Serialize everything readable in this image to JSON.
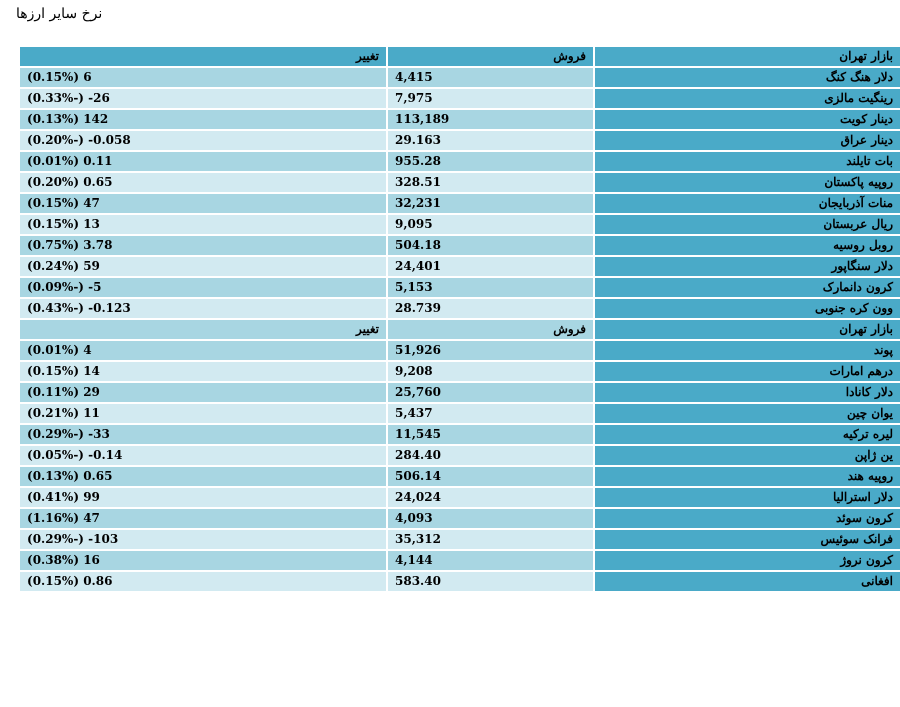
{
  "page_title": "نرخ سایر ارزها",
  "headers": {
    "market": "بازار تهران",
    "sell": "فروش",
    "change": "تغییر"
  },
  "rows": [
    {
      "name": "دلار هنگ کنگ",
      "sell": "4,415",
      "change": "6 (0.15%)"
    },
    {
      "name": "رینگیت مالزی",
      "sell": "7,975",
      "change": "26- (-0.33%)"
    },
    {
      "name": "دینار کویت",
      "sell": "113,189",
      "change": "142 (0.13%)"
    },
    {
      "name": "دینار عراق",
      "sell": "29.163",
      "change": "0.058- (-0.20%)"
    },
    {
      "name": "بات تایلند",
      "sell": "955.28",
      "change": "0.11 (0.01%)"
    },
    {
      "name": "روپیه پاکستان",
      "sell": "328.51",
      "change": "0.65 (0.20%)"
    },
    {
      "name": "منات آذربایجان",
      "sell": "32,231",
      "change": "47 (0.15%)"
    },
    {
      "name": "ریال عربستان",
      "sell": "9,095",
      "change": "13 (0.15%)"
    },
    {
      "name": "روبل روسیه",
      "sell": "504.18",
      "change": "3.78 (0.75%)"
    },
    {
      "name": "دلار سنگاپور",
      "sell": "24,401",
      "change": "59 (0.24%)"
    },
    {
      "name": "کرون دانمارک",
      "sell": "5,153",
      "change": "5- (-0.09%)"
    },
    {
      "name": "وون کره جنوبی",
      "sell": "28.739",
      "change": "0.123- (-0.43%)"
    }
  ],
  "headers2": {
    "market": "بازار تهران",
    "sell": "فروش",
    "change": "تغییر"
  },
  "rows2": [
    {
      "name": "پوند",
      "sell": "51,926",
      "change": "4 (0.01%)"
    },
    {
      "name": "درهم امارات",
      "sell": "9,208",
      "change": "14 (0.15%)"
    },
    {
      "name": "دلار کانادا",
      "sell": "25,760",
      "change": "29 (0.11%)"
    },
    {
      "name": "یوان چین",
      "sell": "5,437",
      "change": "11 (0.21%)"
    },
    {
      "name": "لیره ترکیه",
      "sell": "11,545",
      "change": "33- (-0.29%)"
    },
    {
      "name": "ین ژاپن",
      "sell": "284.40",
      "change": "0.14- (-0.05%)"
    },
    {
      "name": "روپیه هند",
      "sell": "506.14",
      "change": "0.65 (0.13%)"
    },
    {
      "name": "دلار استرالیا",
      "sell": "24,024",
      "change": "99 (0.41%)"
    },
    {
      "name": "کرون سوئد",
      "sell": "4,093",
      "change": "47 (1.16%)"
    },
    {
      "name": "فرانک سوئیس",
      "sell": "35,312",
      "change": "103- (-0.29%)"
    },
    {
      "name": "کرون نروژ",
      "sell": "4,144",
      "change": "16 (0.38%)"
    },
    {
      "name": "افغانی",
      "sell": "583.40",
      "change": "0.86 (0.15%)"
    }
  ],
  "colors": {
    "header": "#4aaac8",
    "row_dark": "#a8d6e2",
    "row_light": "#d2eaf1"
  }
}
